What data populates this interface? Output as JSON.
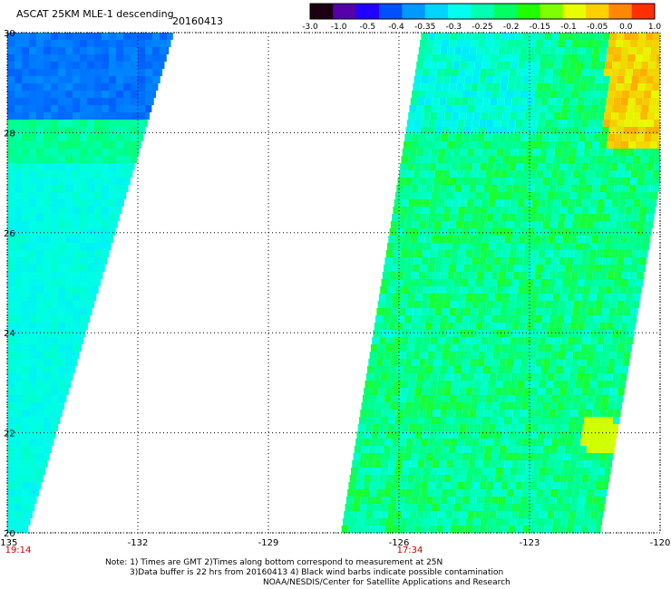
{
  "header": {
    "title": "ASCAT 25KM MLE-1 descending",
    "date": "20160413"
  },
  "colorbar": {
    "labels": [
      "-3.0",
      "-1.0",
      "-0.5",
      "-0.4",
      "-0.35",
      "-0.3",
      "-0.25",
      "-0.2",
      "-0.15",
      "-0.1",
      "-0.05",
      "0.0",
      "1.0"
    ],
    "colors": [
      "#1a0010",
      "#5500aa",
      "#2200ff",
      "#0050ff",
      "#0099ff",
      "#00d4ff",
      "#00ffee",
      "#00ffb0",
      "#00ff60",
      "#20ff00",
      "#80ff00",
      "#e8ff00",
      "#ffd000",
      "#ff8800",
      "#ff3000"
    ]
  },
  "axes": {
    "lon_labels": [
      "-135",
      "-132",
      "-129",
      "-126",
      "-123",
      "-120"
    ],
    "lon_values": [
      -135,
      -132,
      -129,
      -126,
      -123,
      -120
    ],
    "lat_labels": [
      "30",
      "28",
      "26",
      "24",
      "22",
      "20"
    ],
    "lat_values": [
      30,
      28,
      26,
      24,
      22,
      20
    ],
    "lon_range": [
      -135,
      -120
    ],
    "lat_range": [
      20,
      30
    ]
  },
  "swath_times": [
    {
      "label": "19:14",
      "lon": -135
    },
    {
      "label": "17:34",
      "lon": -126
    },
    {
      "label": "",
      "lon": -120
    }
  ],
  "notes": {
    "line1": "Note: 1) Times are GMT 2)Times along bottom correspond to measurement at 25N",
    "line2": "3)Data buffer is 22 hrs from 20160413 4) Black wind barbs indicate possible contamination",
    "line3": "NOAA/NESDIS/Center for Satellite Applications and Research"
  },
  "time_color": "#cc0000"
}
